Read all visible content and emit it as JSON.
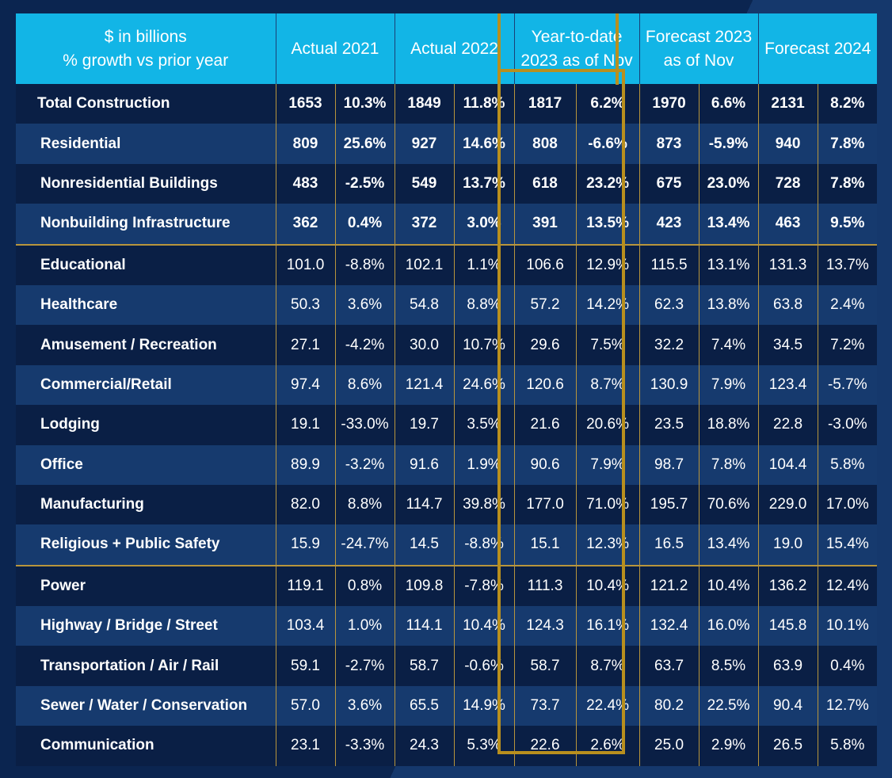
{
  "chart_data": {
    "type": "table",
    "columns": [
      "$ in billions\n% growth vs prior year",
      "Actual 2021",
      "Actual 2022",
      "Year-to-date 2023 as of Nov",
      "Forecast 2023 as of Nov",
      "Forecast 2024"
    ],
    "rows": [
      {
        "label": "Total Construction",
        "cells": [
          "1653",
          "10.3%",
          "1849",
          "11.8%",
          "1817",
          "6.2%",
          "1970",
          "6.6%",
          "2131",
          "8.2%"
        ]
      },
      {
        "label": "Residential",
        "cells": [
          "809",
          "25.6%",
          "927",
          "14.6%",
          "808",
          "-6.6%",
          "873",
          "-5.9%",
          "940",
          "7.8%"
        ]
      },
      {
        "label": "Nonresidential Buildings",
        "cells": [
          "483",
          "-2.5%",
          "549",
          "13.7%",
          "618",
          "23.2%",
          "675",
          "23.0%",
          "728",
          "7.8%"
        ]
      },
      {
        "label": "Nonbuilding Infrastructure",
        "cells": [
          "362",
          "0.4%",
          "372",
          "3.0%",
          "391",
          "13.5%",
          "423",
          "13.4%",
          "463",
          "9.5%"
        ]
      },
      {
        "label": "Educational",
        "cells": [
          "101.0",
          "-8.8%",
          "102.1",
          "1.1%",
          "106.6",
          "12.9%",
          "115.5",
          "13.1%",
          "131.3",
          "13.7%"
        ]
      },
      {
        "label": "Healthcare",
        "cells": [
          "50.3",
          "3.6%",
          "54.8",
          "8.8%",
          "57.2",
          "14.2%",
          "62.3",
          "13.8%",
          "63.8",
          "2.4%"
        ]
      },
      {
        "label": "Amusement / Recreation",
        "cells": [
          "27.1",
          "-4.2%",
          "30.0",
          "10.7%",
          "29.6",
          "7.5%",
          "32.2",
          "7.4%",
          "34.5",
          "7.2%"
        ]
      },
      {
        "label": "Commercial/Retail",
        "cells": [
          "97.4",
          "8.6%",
          "121.4",
          "24.6%",
          "120.6",
          "8.7%",
          "130.9",
          "7.9%",
          "123.4",
          "-5.7%"
        ]
      },
      {
        "label": "Lodging",
        "cells": [
          "19.1",
          "-33.0%",
          "19.7",
          "3.5%",
          "21.6",
          "20.6%",
          "23.5",
          "18.8%",
          "22.8",
          "-3.0%"
        ]
      },
      {
        "label": "Office",
        "cells": [
          "89.9",
          "-3.2%",
          "91.6",
          "1.9%",
          "90.6",
          "7.9%",
          "98.7",
          "7.8%",
          "104.4",
          "5.8%"
        ]
      },
      {
        "label": "Manufacturing",
        "cells": [
          "82.0",
          "8.8%",
          "114.7",
          "39.8%",
          "177.0",
          "71.0%",
          "195.7",
          "70.6%",
          "229.0",
          "17.0%"
        ]
      },
      {
        "label": "Religious + Public Safety",
        "cells": [
          "15.9",
          "-24.7%",
          "14.5",
          "-8.8%",
          "15.1",
          "12.3%",
          "16.5",
          "13.4%",
          "19.0",
          "15.4%"
        ]
      },
      {
        "label": "Power",
        "cells": [
          "119.1",
          "0.8%",
          "109.8",
          "-7.8%",
          "111.3",
          "10.4%",
          "121.2",
          "10.4%",
          "136.2",
          "12.4%"
        ]
      },
      {
        "label": "Highway / Bridge / Street",
        "cells": [
          "103.4",
          "1.0%",
          "114.1",
          "10.4%",
          "124.3",
          "16.1%",
          "132.4",
          "16.0%",
          "145.8",
          "10.1%"
        ]
      },
      {
        "label": "Transportation / Air / Rail",
        "cells": [
          "59.1",
          "-2.7%",
          "58.7",
          "-0.6%",
          "58.7",
          "8.7%",
          "63.7",
          "8.5%",
          "63.9",
          "0.4%"
        ]
      },
      {
        "label": "Sewer / Water / Conservation",
        "cells": [
          "57.0",
          "3.6%",
          "65.5",
          "14.9%",
          "73.7",
          "22.4%",
          "80.2",
          "22.5%",
          "90.4",
          "12.7%"
        ]
      },
      {
        "label": "Communication",
        "cells": [
          "23.1",
          "-3.3%",
          "24.3",
          "5.3%",
          "22.6",
          "2.6%",
          "25.0",
          "2.9%",
          "26.5",
          "5.8%"
        ]
      }
    ]
  },
  "colors": {
    "header_bg": "#12b5e6",
    "row_dark": "#0a1f45",
    "row_light": "#163a6e",
    "gold": "#b88f1e",
    "page_bg": "#0b2550"
  }
}
